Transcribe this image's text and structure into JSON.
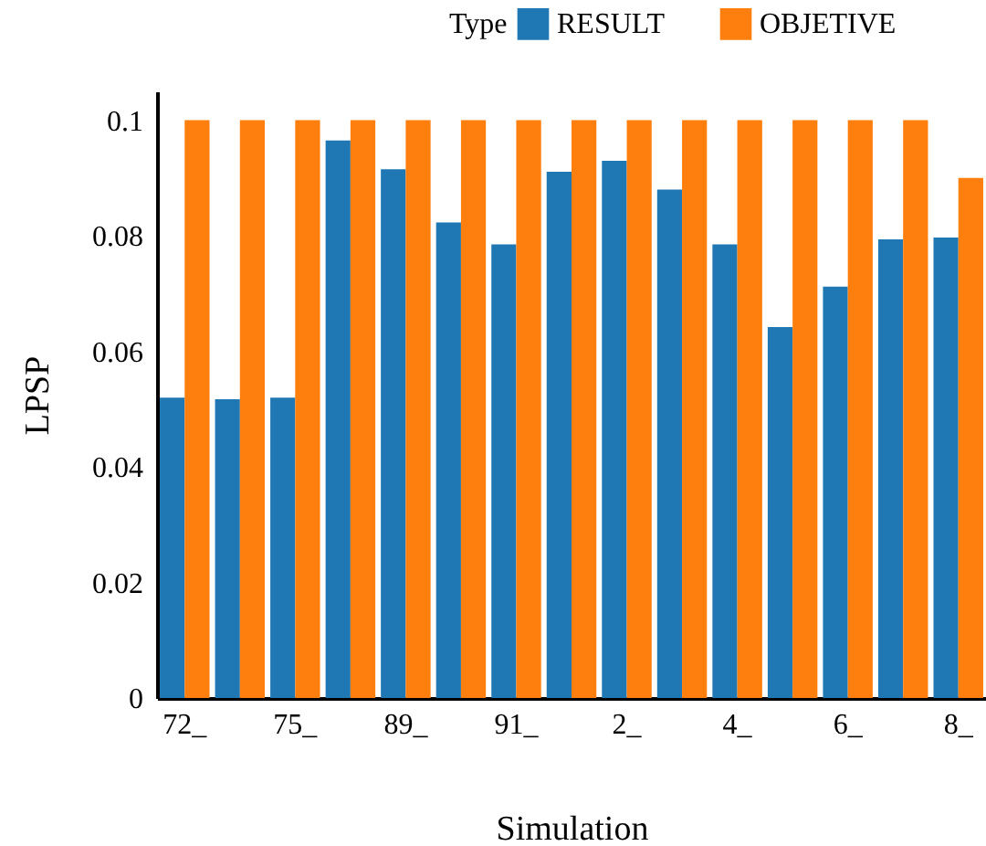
{
  "chart_data": {
    "type": "bar",
    "xlabel": "Simulation",
    "ylabel": "LPSP",
    "legend_title": "Type",
    "legend": "top right",
    "grid": false,
    "categories": [
      "72_",
      null,
      "75_",
      null,
      "89_",
      null,
      "91_",
      null,
      "2_",
      null,
      "4_",
      null,
      "6_",
      null,
      "8_"
    ],
    "series": [
      {
        "name": "RESULT",
        "color": "#1f77b4",
        "values": [
          0.052,
          0.0517,
          0.052,
          0.0965,
          0.0915,
          0.0823,
          0.0785,
          0.0911,
          0.093,
          0.088,
          0.0785,
          0.0642,
          0.0712,
          0.0794,
          0.0797
        ]
      },
      {
        "name": "OBJETIVE",
        "color": "#ff7f0e",
        "values": [
          0.1,
          0.1,
          0.1,
          0.1,
          0.1,
          0.1,
          0.1,
          0.1,
          0.1,
          0.1,
          0.1,
          0.1,
          0.1,
          0.1,
          0.09
        ]
      }
    ],
    "ylim": [
      0,
      0.105
    ],
    "yticks": [
      0,
      0.02,
      0.04,
      0.06,
      0.08,
      0.1
    ]
  }
}
